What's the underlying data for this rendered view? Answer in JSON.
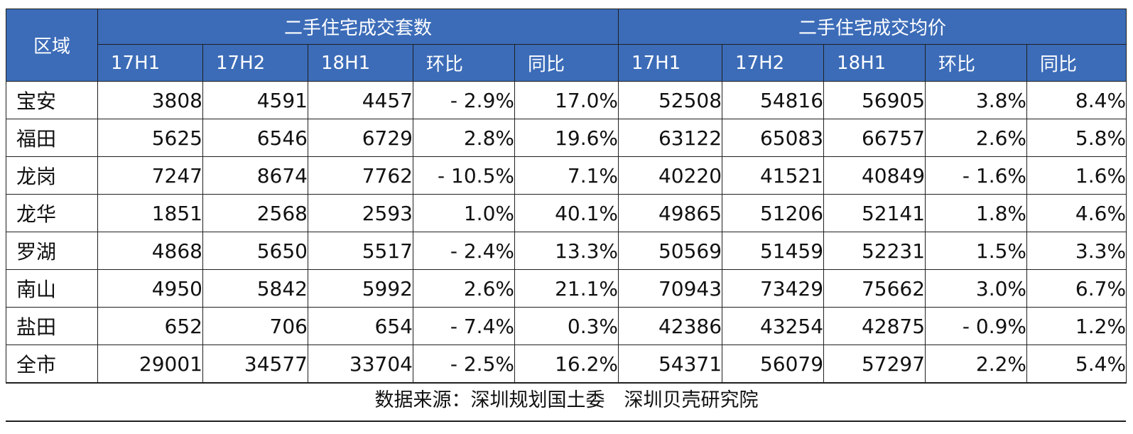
{
  "table": {
    "region_header": "区域",
    "group_headers": [
      "二手住宅成交套数",
      "二手住宅成交均价"
    ],
    "sub_headers": [
      "17H1",
      "17H2",
      "18H1",
      "环比",
      "同比",
      "17H1",
      "17H2",
      "18H1",
      "环比",
      "同比"
    ],
    "rows": [
      {
        "name": "宝安",
        "cells": [
          "3808",
          "4591",
          "4457",
          "- 2.9%",
          "17.0%",
          "52508",
          "54816",
          "56905",
          "3.8%",
          "8.4%"
        ]
      },
      {
        "name": "福田",
        "cells": [
          "5625",
          "6546",
          "6729",
          "2.8%",
          "19.6%",
          "63122",
          "65083",
          "66757",
          "2.6%",
          "5.8%"
        ]
      },
      {
        "name": "龙岗",
        "cells": [
          "7247",
          "8674",
          "7762",
          "- 10.5%",
          "7.1%",
          "40220",
          "41521",
          "40849",
          "- 1.6%",
          "1.6%"
        ]
      },
      {
        "name": "龙华",
        "cells": [
          "1851",
          "2568",
          "2593",
          "1.0%",
          "40.1%",
          "49865",
          "51206",
          "52141",
          "1.8%",
          "4.6%"
        ]
      },
      {
        "name": "罗湖",
        "cells": [
          "4868",
          "5650",
          "5517",
          "- 2.4%",
          "13.3%",
          "50569",
          "51459",
          "52231",
          "1.5%",
          "3.3%"
        ]
      },
      {
        "name": "南山",
        "cells": [
          "4950",
          "5842",
          "5992",
          "2.6%",
          "21.1%",
          "70943",
          "73429",
          "75662",
          "3.0%",
          "6.7%"
        ]
      },
      {
        "name": "盐田",
        "cells": [
          "652",
          "706",
          "654",
          "- 7.4%",
          "0.3%",
          "42386",
          "43254",
          "42875",
          "- 0.9%",
          "1.2%"
        ]
      },
      {
        "name": "全市",
        "cells": [
          "29001",
          "34577",
          "33704",
          "- 2.5%",
          "16.2%",
          "54371",
          "56079",
          "57297",
          "2.2%",
          "5.4%"
        ]
      }
    ]
  },
  "source": "数据来源：深圳规划国土委　深圳贝壳研究院",
  "colors": {
    "header_bg": "#3c6cb8",
    "header_text": "#ffffff",
    "border": "#1f1f1f"
  }
}
